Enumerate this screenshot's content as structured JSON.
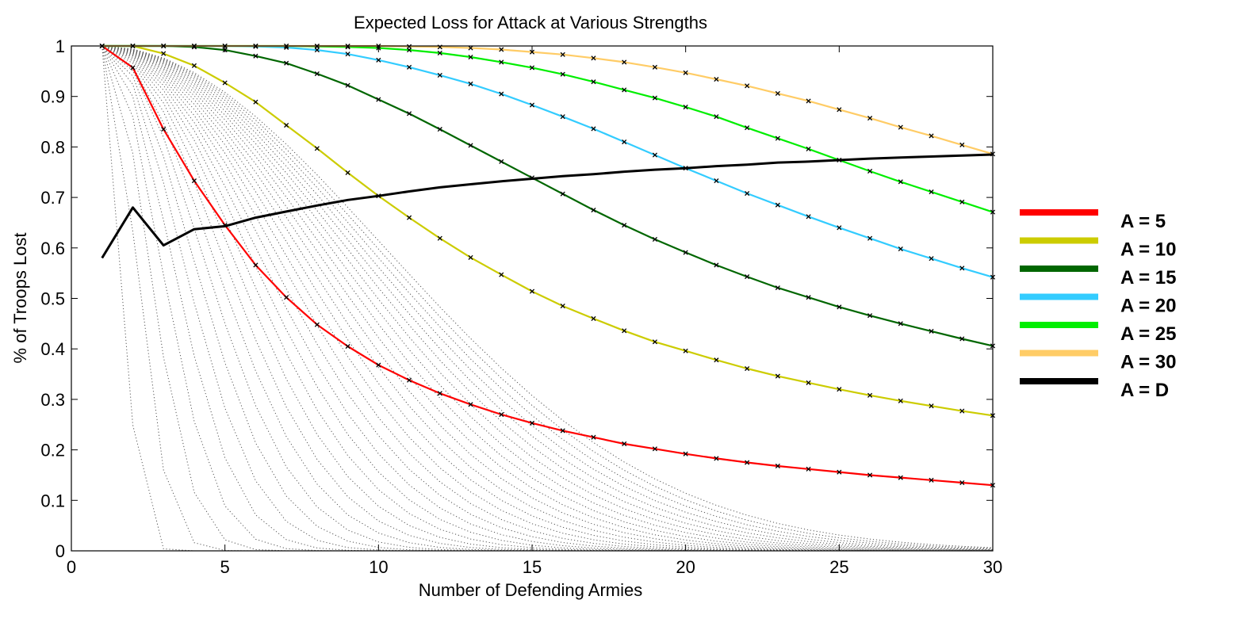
{
  "chart_data": {
    "type": "line",
    "title": "Expected Loss for Attack at Various Strengths",
    "xlabel": "Number of Defending Armies",
    "ylabel": "% of Troops Lost",
    "xlim": [
      0,
      30
    ],
    "ylim": [
      0,
      1
    ],
    "xticks": [
      "0",
      "5",
      "10",
      "15",
      "20",
      "25",
      "30"
    ],
    "yticks": [
      "0",
      "0.1",
      "0.2",
      "0.3",
      "0.4",
      "0.5",
      "0.6",
      "0.7",
      "0.8",
      "0.9",
      "1"
    ],
    "grid": false,
    "legend_position": "right",
    "x": [
      1,
      2,
      3,
      4,
      5,
      6,
      7,
      8,
      9,
      10,
      11,
      12,
      13,
      14,
      15,
      16,
      17,
      18,
      19,
      20,
      21,
      22,
      23,
      24,
      25,
      26,
      27,
      28,
      29,
      30
    ],
    "background_series": {
      "attacker_strengths": [
        1,
        2,
        3,
        4,
        5,
        6,
        7,
        8,
        9,
        10,
        11,
        12,
        13,
        14,
        15,
        16,
        17,
        18,
        19,
        20,
        21,
        22,
        23,
        24,
        25,
        26,
        27,
        28,
        29,
        30
      ],
      "color": "#555555",
      "style": "dotted"
    },
    "series": [
      {
        "name": "A = 5",
        "attackers": 5,
        "color": "#ff0000",
        "values": [
          1.0,
          0.957,
          0.835,
          0.733,
          0.645,
          0.566,
          0.502,
          0.448,
          0.405,
          0.368,
          0.338,
          0.312,
          0.29,
          0.27,
          0.253,
          0.238,
          0.225,
          0.212,
          0.202,
          0.192,
          0.183,
          0.175,
          0.168,
          0.162,
          0.156,
          0.15,
          0.145,
          0.14,
          0.135,
          0.13
        ]
      },
      {
        "name": "A = 10",
        "attackers": 10,
        "color": "#cccc00",
        "values": [
          1.0,
          1.0,
          0.985,
          0.961,
          0.927,
          0.889,
          0.843,
          0.797,
          0.749,
          0.703,
          0.66,
          0.619,
          0.581,
          0.547,
          0.514,
          0.485,
          0.46,
          0.436,
          0.414,
          0.396,
          0.378,
          0.361,
          0.346,
          0.333,
          0.32,
          0.308,
          0.297,
          0.287,
          0.277,
          0.268
        ]
      },
      {
        "name": "A = 15",
        "attackers": 15,
        "color": "#006600",
        "values": [
          1.0,
          1.0,
          1.0,
          0.998,
          0.992,
          0.98,
          0.966,
          0.945,
          0.922,
          0.894,
          0.866,
          0.835,
          0.803,
          0.771,
          0.739,
          0.707,
          0.675,
          0.645,
          0.617,
          0.591,
          0.566,
          0.543,
          0.521,
          0.502,
          0.483,
          0.466,
          0.45,
          0.435,
          0.42,
          0.406
        ]
      },
      {
        "name": "A = 20",
        "attackers": 20,
        "color": "#33ccff",
        "values": [
          1.0,
          1.0,
          1.0,
          1.0,
          1.0,
          0.999,
          0.997,
          0.992,
          0.984,
          0.972,
          0.958,
          0.942,
          0.925,
          0.905,
          0.883,
          0.86,
          0.836,
          0.81,
          0.784,
          0.758,
          0.733,
          0.708,
          0.685,
          0.662,
          0.64,
          0.619,
          0.598,
          0.579,
          0.56,
          0.542
        ]
      },
      {
        "name": "A = 25",
        "attackers": 25,
        "color": "#00ee00",
        "values": [
          1.0,
          1.0,
          1.0,
          1.0,
          1.0,
          1.0,
          1.0,
          0.999,
          0.998,
          0.996,
          0.992,
          0.986,
          0.978,
          0.968,
          0.957,
          0.944,
          0.929,
          0.913,
          0.897,
          0.879,
          0.86,
          0.838,
          0.817,
          0.796,
          0.774,
          0.752,
          0.731,
          0.711,
          0.691,
          0.671
        ]
      },
      {
        "name": "A = 30",
        "attackers": 30,
        "color": "#ffcc66",
        "values": [
          1.0,
          1.0,
          1.0,
          1.0,
          1.0,
          1.0,
          1.0,
          1.0,
          1.0,
          1.0,
          0.999,
          0.998,
          0.996,
          0.993,
          0.988,
          0.983,
          0.976,
          0.968,
          0.958,
          0.947,
          0.934,
          0.921,
          0.906,
          0.891,
          0.874,
          0.857,
          0.839,
          0.822,
          0.804,
          0.786
        ]
      },
      {
        "name": "A = D",
        "attackers": "D",
        "color": "#000000",
        "values": [
          0.58,
          0.68,
          0.605,
          0.637,
          0.643,
          0.66,
          0.672,
          0.684,
          0.695,
          0.703,
          0.712,
          0.72,
          0.726,
          0.732,
          0.737,
          0.742,
          0.746,
          0.751,
          0.755,
          0.758,
          0.762,
          0.765,
          0.769,
          0.771,
          0.774,
          0.777,
          0.779,
          0.781,
          0.783,
          0.785
        ]
      }
    ]
  }
}
